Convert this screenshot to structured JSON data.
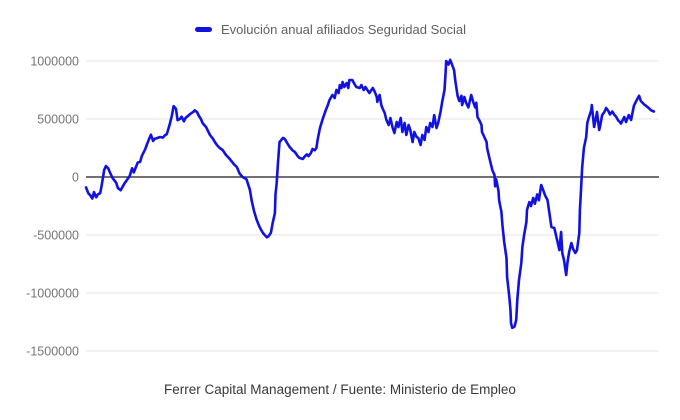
{
  "legend": {
    "label": "Evolución anual afiliados Seguridad Social"
  },
  "caption": "Ferrer Capital Management / Fuente: Ministerio de Empleo",
  "colors": {
    "line": "#1212e0",
    "grid": "#e6e6e6",
    "zero_line": "#424242",
    "axis_label": "#757575",
    "legend_text": "#616161",
    "caption_text": "#383838",
    "background": "#ffffff"
  },
  "chart_data": {
    "type": "line",
    "title": "",
    "legend_position": "top",
    "grid": true,
    "x_axis": {
      "tick_labels": [],
      "x_unit": "percent-of-time-axis",
      "range_pct": [
        0,
        100
      ]
    },
    "y_axis": {
      "ticks": [
        1000000,
        500000,
        0,
        -500000,
        -1000000,
        -1500000
      ],
      "tick_labels": [
        "1000000",
        "500000",
        "0",
        "-500000",
        "-1000000",
        "-1500000"
      ],
      "range": [
        -1600000,
        1100000
      ],
      "zero_line": true
    },
    "series": [
      {
        "name": "Evolución anual afiliados Seguridad Social",
        "color": "#1212e0",
        "points": [
          [
            0,
            -90000
          ],
          [
            0.4,
            -140000
          ],
          [
            0.7,
            -155000
          ],
          [
            1.1,
            -185000
          ],
          [
            1.4,
            -130000
          ],
          [
            1.8,
            -175000
          ],
          [
            2.1,
            -150000
          ],
          [
            2.5,
            -140000
          ],
          [
            2.8,
            -60000
          ],
          [
            3.2,
            60000
          ],
          [
            3.5,
            95000
          ],
          [
            3.9,
            75000
          ],
          [
            4.2,
            40000
          ],
          [
            4.7,
            -10000
          ],
          [
            5.3,
            -50000
          ],
          [
            5.6,
            -95000
          ],
          [
            6.1,
            -115000
          ],
          [
            6.7,
            -60000
          ],
          [
            7.2,
            -25000
          ],
          [
            7.7,
            10000
          ],
          [
            8.1,
            75000
          ],
          [
            8.4,
            40000
          ],
          [
            8.8,
            90000
          ],
          [
            9.1,
            125000
          ],
          [
            9.5,
            130000
          ],
          [
            9.8,
            180000
          ],
          [
            10.4,
            240000
          ],
          [
            10.7,
            280000
          ],
          [
            11.1,
            330000
          ],
          [
            11.4,
            365000
          ],
          [
            11.8,
            310000
          ],
          [
            12.1,
            330000
          ],
          [
            12.5,
            335000
          ],
          [
            13,
            345000
          ],
          [
            13.5,
            340000
          ],
          [
            13.9,
            360000
          ],
          [
            14.2,
            370000
          ],
          [
            14.7,
            450000
          ],
          [
            15.1,
            530000
          ],
          [
            15.4,
            610000
          ],
          [
            15.8,
            590000
          ],
          [
            16.1,
            490000
          ],
          [
            16.5,
            500000
          ],
          [
            16.8,
            520000
          ],
          [
            17.2,
            480000
          ],
          [
            17.5,
            510000
          ],
          [
            17.9,
            525000
          ],
          [
            18.2,
            540000
          ],
          [
            18.8,
            560000
          ],
          [
            19.1,
            575000
          ],
          [
            19.5,
            560000
          ],
          [
            19.8,
            530000
          ],
          [
            20.2,
            500000
          ],
          [
            20.5,
            465000
          ],
          [
            21.1,
            430000
          ],
          [
            21.4,
            400000
          ],
          [
            21.8,
            362000
          ],
          [
            22.3,
            330000
          ],
          [
            22.6,
            305000
          ],
          [
            23,
            276000
          ],
          [
            23.5,
            250000
          ],
          [
            24,
            233000
          ],
          [
            24.6,
            190000
          ],
          [
            25.1,
            165000
          ],
          [
            25.4,
            147000
          ],
          [
            26,
            110000
          ],
          [
            26.5,
            86000
          ],
          [
            27,
            30000
          ],
          [
            27.5,
            0
          ],
          [
            27.9,
            -10000
          ],
          [
            28.2,
            -20000
          ],
          [
            28.8,
            -110000
          ],
          [
            29.1,
            -200000
          ],
          [
            29.5,
            -290000
          ],
          [
            30,
            -370000
          ],
          [
            30.4,
            -420000
          ],
          [
            30.7,
            -450000
          ],
          [
            31.1,
            -483000
          ],
          [
            31.4,
            -500000
          ],
          [
            31.8,
            -520000
          ],
          [
            32.1,
            -510000
          ],
          [
            32.5,
            -480000
          ],
          [
            32.8,
            -400000
          ],
          [
            33.2,
            -310000
          ],
          [
            33.3,
            -150000
          ],
          [
            33.5,
            -60000
          ],
          [
            33.7,
            100000
          ],
          [
            34,
            300000
          ],
          [
            34.6,
            336000
          ],
          [
            34.9,
            330000
          ],
          [
            35.4,
            290000
          ],
          [
            35.8,
            259000
          ],
          [
            36.3,
            230000
          ],
          [
            36.7,
            216000
          ],
          [
            37.2,
            180000
          ],
          [
            37.5,
            165000
          ],
          [
            38.1,
            155000
          ],
          [
            38.4,
            175000
          ],
          [
            38.8,
            195000
          ],
          [
            39.1,
            180000
          ],
          [
            39.5,
            205000
          ],
          [
            39.8,
            241000
          ],
          [
            40.2,
            230000
          ],
          [
            40.5,
            250000
          ],
          [
            40.7,
            319000
          ],
          [
            41.1,
            420000
          ],
          [
            41.6,
            500000
          ],
          [
            42.1,
            570000
          ],
          [
            42.5,
            620000
          ],
          [
            42.8,
            664000
          ],
          [
            43.3,
            707000
          ],
          [
            43.7,
            681000
          ],
          [
            44,
            750000
          ],
          [
            44.4,
            724000
          ],
          [
            44.6,
            793000
          ],
          [
            44.9,
            767000
          ],
          [
            45.1,
            819000
          ],
          [
            45.4,
            776000
          ],
          [
            45.8,
            810000
          ],
          [
            46.1,
            767000
          ],
          [
            46.3,
            836000
          ],
          [
            46.8,
            836000
          ],
          [
            47.2,
            800000
          ],
          [
            47.5,
            776000
          ],
          [
            48.1,
            767000
          ],
          [
            48.4,
            793000
          ],
          [
            48.8,
            750000
          ],
          [
            49.1,
            776000
          ],
          [
            49.5,
            745000
          ],
          [
            49.8,
            724000
          ],
          [
            50.4,
            767000
          ],
          [
            50.7,
            740000
          ],
          [
            51.1,
            690000
          ],
          [
            51.2,
            647000
          ],
          [
            51.6,
            707000
          ],
          [
            51.9,
            621000
          ],
          [
            52.1,
            595000
          ],
          [
            52.5,
            552000
          ],
          [
            52.8,
            491000
          ],
          [
            53.2,
            448000
          ],
          [
            53.5,
            509000
          ],
          [
            53.9,
            422000
          ],
          [
            54.2,
            379000
          ],
          [
            54.6,
            474000
          ],
          [
            54.9,
            431000
          ],
          [
            55.3,
            509000
          ],
          [
            55.6,
            388000
          ],
          [
            56,
            466000
          ],
          [
            56.3,
            362000
          ],
          [
            56.7,
            448000
          ],
          [
            57,
            405000
          ],
          [
            57.4,
            302000
          ],
          [
            57.7,
            388000
          ],
          [
            58.1,
            345000
          ],
          [
            58.4,
            336000
          ],
          [
            58.8,
            276000
          ],
          [
            59.1,
            362000
          ],
          [
            59.5,
            319000
          ],
          [
            59.8,
            431000
          ],
          [
            60.2,
            388000
          ],
          [
            60.5,
            466000
          ],
          [
            60.9,
            431000
          ],
          [
            61.2,
            534000
          ],
          [
            61.6,
            422000
          ],
          [
            61.9,
            466000
          ],
          [
            62.3,
            560000
          ],
          [
            62.6,
            647000
          ],
          [
            63,
            750000
          ],
          [
            63.2,
            900000
          ],
          [
            63.3,
            1000000
          ],
          [
            63.7,
            970000
          ],
          [
            64,
            1010000
          ],
          [
            64.4,
            960000
          ],
          [
            64.7,
            920000
          ],
          [
            64.9,
            830000
          ],
          [
            65.3,
            700000
          ],
          [
            65.6,
            655000
          ],
          [
            66,
            700000
          ],
          [
            66.1,
            620000
          ],
          [
            66.5,
            690000
          ],
          [
            66.8,
            640000
          ],
          [
            67.2,
            600000
          ],
          [
            67.7,
            707000
          ],
          [
            68.1,
            640000
          ],
          [
            68.4,
            600000
          ],
          [
            68.6,
            640000
          ],
          [
            68.8,
            517000
          ],
          [
            69.1,
            491000
          ],
          [
            69.5,
            448000
          ],
          [
            69.6,
            388000
          ],
          [
            70,
            345000
          ],
          [
            70.4,
            302000
          ],
          [
            70.5,
            250000
          ],
          [
            70.9,
            164000
          ],
          [
            71.2,
            103000
          ],
          [
            71.4,
            60000
          ],
          [
            71.8,
            17000
          ],
          [
            71.9,
            -80000
          ],
          [
            72.1,
            -20000
          ],
          [
            72.5,
            -120000
          ],
          [
            72.6,
            -200000
          ],
          [
            73,
            -300000
          ],
          [
            73.2,
            -420000
          ],
          [
            73.5,
            -560000
          ],
          [
            73.9,
            -700000
          ],
          [
            74,
            -862000
          ],
          [
            74.4,
            -1034000
          ],
          [
            74.6,
            -1150000
          ],
          [
            74.7,
            -1259000
          ],
          [
            74.9,
            -1300000
          ],
          [
            75.3,
            -1290000
          ],
          [
            75.6,
            -1233000
          ],
          [
            75.8,
            -1060000
          ],
          [
            76.1,
            -888000
          ],
          [
            76.5,
            -741000
          ],
          [
            76.7,
            -603000
          ],
          [
            77,
            -500000
          ],
          [
            77.4,
            -388000
          ],
          [
            77.5,
            -284000
          ],
          [
            77.9,
            -216000
          ],
          [
            78.2,
            -250000
          ],
          [
            78.6,
            -180000
          ],
          [
            78.9,
            -230000
          ],
          [
            79.3,
            -150000
          ],
          [
            79.6,
            -200000
          ],
          [
            80,
            -69000
          ],
          [
            80.4,
            -120000
          ],
          [
            80.7,
            -160000
          ],
          [
            81.1,
            -198000
          ],
          [
            81.4,
            -300000
          ],
          [
            81.8,
            -431000
          ],
          [
            82.3,
            -440000
          ],
          [
            82.8,
            -543000
          ],
          [
            83.2,
            -630000
          ],
          [
            83.5,
            -474000
          ],
          [
            83.7,
            -655000
          ],
          [
            84,
            -716000
          ],
          [
            84.4,
            -845000
          ],
          [
            84.6,
            -741000
          ],
          [
            84.9,
            -647000
          ],
          [
            85.3,
            -569000
          ],
          [
            85.6,
            -620000
          ],
          [
            86,
            -655000
          ],
          [
            86.3,
            -630000
          ],
          [
            86.7,
            -483000
          ],
          [
            86.8,
            -284000
          ],
          [
            87,
            -112000
          ],
          [
            87.2,
            86000
          ],
          [
            87.5,
            250000
          ],
          [
            87.9,
            345000
          ],
          [
            88.1,
            466000
          ],
          [
            88.4,
            517000
          ],
          [
            88.8,
            578000
          ],
          [
            88.9,
            621000
          ],
          [
            89.3,
            431000
          ],
          [
            89.6,
            500000
          ],
          [
            89.8,
            560000
          ],
          [
            90.2,
            405000
          ],
          [
            90.4,
            450000
          ],
          [
            90.7,
            534000
          ],
          [
            91.1,
            560000
          ],
          [
            91.4,
            595000
          ],
          [
            91.8,
            570000
          ],
          [
            92.1,
            540000
          ],
          [
            92.5,
            565000
          ],
          [
            92.8,
            540000
          ],
          [
            93.2,
            517000
          ],
          [
            93.5,
            490000
          ],
          [
            93.9,
            470000
          ],
          [
            94,
            460000
          ],
          [
            94.6,
            517000
          ],
          [
            94.9,
            474000
          ],
          [
            95.4,
            534000
          ],
          [
            95.8,
            491000
          ],
          [
            96.3,
            615000
          ],
          [
            96.8,
            665000
          ],
          [
            97.2,
            700000
          ],
          [
            97.5,
            655000
          ],
          [
            98.1,
            625000
          ],
          [
            98.4,
            615000
          ],
          [
            98.9,
            595000
          ],
          [
            99.3,
            575000
          ],
          [
            99.8,
            565000
          ]
        ]
      }
    ]
  }
}
